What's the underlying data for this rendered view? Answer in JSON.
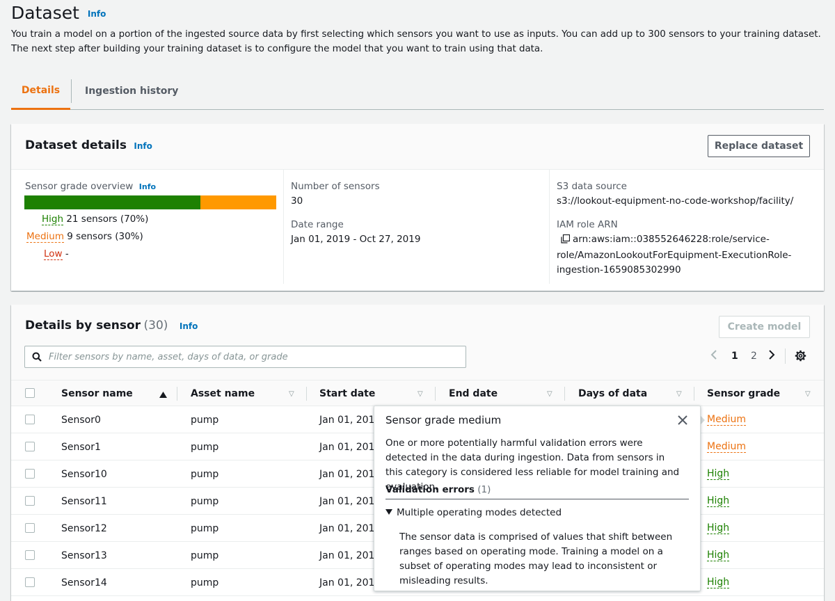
{
  "page": {
    "title": "Dataset",
    "info": "Info",
    "description": "You train a model on a portion of the ingested source data by first selecting which sensors you want to use as inputs. You can add up to 300 sensors to your training dataset. The next step after building your training dataset is to configure the model that you want to train using that data."
  },
  "tabs": [
    {
      "label": "Details",
      "active": true
    },
    {
      "label": "Ingestion history",
      "active": false
    }
  ],
  "dataset_details": {
    "title": "Dataset details",
    "info": "Info",
    "replace_button": "Replace dataset",
    "sensor_grade_overview": {
      "label": "Sensor grade overview",
      "info": "Info",
      "high_fraction": 0.7,
      "medium_fraction": 0.3,
      "colors": {
        "high": "#1d8102",
        "medium": "#ff9900"
      },
      "high_label": "High",
      "high_value": "21 sensors (70%)",
      "medium_label": "Medium",
      "medium_value": "9 sensors (30%)",
      "low_label": "Low",
      "low_value": "-"
    },
    "number_of_sensors_label": "Number of sensors",
    "number_of_sensors": "30",
    "date_range_label": "Date range",
    "date_range": "Jan 01, 2019 - Oct 27, 2019",
    "s3_label": "S3 data source",
    "s3_value": "s3://lookout-equipment-no-code-workshop/facility/",
    "iam_label": "IAM role ARN",
    "iam_line1": "arn:aws:iam::038552646228:role/service-",
    "iam_line2": "role/AmazonLookoutForEquipment-ExecutionRole-",
    "iam_line3": "ingestion-1659085302990"
  },
  "sensor_table": {
    "title": "Details by sensor",
    "count": "(30)",
    "info": "Info",
    "create_model_button": "Create model",
    "search_placeholder": "Filter sensors by name, asset, days of data, or grade",
    "pagination": {
      "page1": "1",
      "page2": "2"
    },
    "columns": [
      "Sensor name",
      "Asset name",
      "Start date",
      "End date",
      "Days of data",
      "Sensor grade"
    ],
    "rows": [
      {
        "name": "Sensor0",
        "asset": "pump",
        "start": "Jan 01, 2019",
        "grade": "Medium"
      },
      {
        "name": "Sensor1",
        "asset": "pump",
        "start": "Jan 01, 2019",
        "grade": "Medium"
      },
      {
        "name": "Sensor10",
        "asset": "pump",
        "start": "Jan 01, 2019",
        "grade": "High"
      },
      {
        "name": "Sensor11",
        "asset": "pump",
        "start": "Jan 01, 2019",
        "grade": "High"
      },
      {
        "name": "Sensor12",
        "asset": "pump",
        "start": "Jan 01, 2019",
        "grade": "High"
      },
      {
        "name": "Sensor13",
        "asset": "pump",
        "start": "Jan 01, 2019",
        "grade": "High"
      },
      {
        "name": "Sensor14",
        "asset": "pump",
        "start": "Jan 01, 2019",
        "grade": "High"
      }
    ]
  },
  "popover": {
    "title": "Sensor grade medium",
    "body": "One or more potentially harmful validation errors were detected in the data during ingestion. Data from sensors in this category is considered less reliable for model training and evaluation.",
    "section_label": "Validation errors",
    "section_count": "(1)",
    "expand_label": "Multiple operating modes detected",
    "expand_body": "The sensor data is comprised of values that shift between ranges based on operating mode. Training a model on a subset of operating modes may lead to inconsistent or misleading results."
  }
}
